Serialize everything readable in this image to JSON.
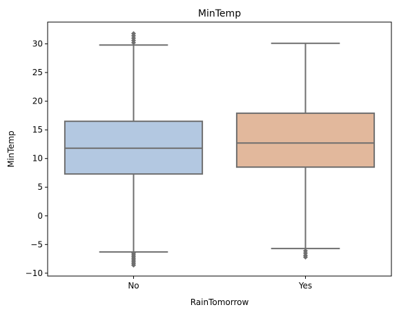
{
  "chart_data": {
    "type": "box",
    "title": "MinTemp",
    "xlabel": "RainTomorrow",
    "ylabel": "MinTemp",
    "categories": [
      "No",
      "Yes"
    ],
    "ylim": [
      -10.5,
      33.8
    ],
    "yticks": [
      -10,
      -5,
      0,
      5,
      10,
      15,
      20,
      25,
      30
    ],
    "grid": false,
    "boxes": [
      {
        "category": "No",
        "color": "#b3c8e1",
        "whisker_low": -6.3,
        "q1": 7.3,
        "median": 11.8,
        "q3": 16.5,
        "whisker_high": 29.8,
        "outliers": [
          -6.5,
          -6.8,
          -7.1,
          -7.4,
          -7.7,
          -8.0,
          -8.3,
          -8.6,
          30.2,
          30.6,
          31.0,
          31.4,
          31.8
        ]
      },
      {
        "category": "Yes",
        "color": "#e2b89c",
        "whisker_low": -5.7,
        "q1": 8.5,
        "median": 12.7,
        "q3": 17.9,
        "whisker_high": 30.1,
        "outliers": [
          -6.1,
          -6.5,
          -6.9,
          -7.2
        ]
      }
    ]
  },
  "colors": {
    "line": "#6e6e6e",
    "axis": "#000000"
  }
}
